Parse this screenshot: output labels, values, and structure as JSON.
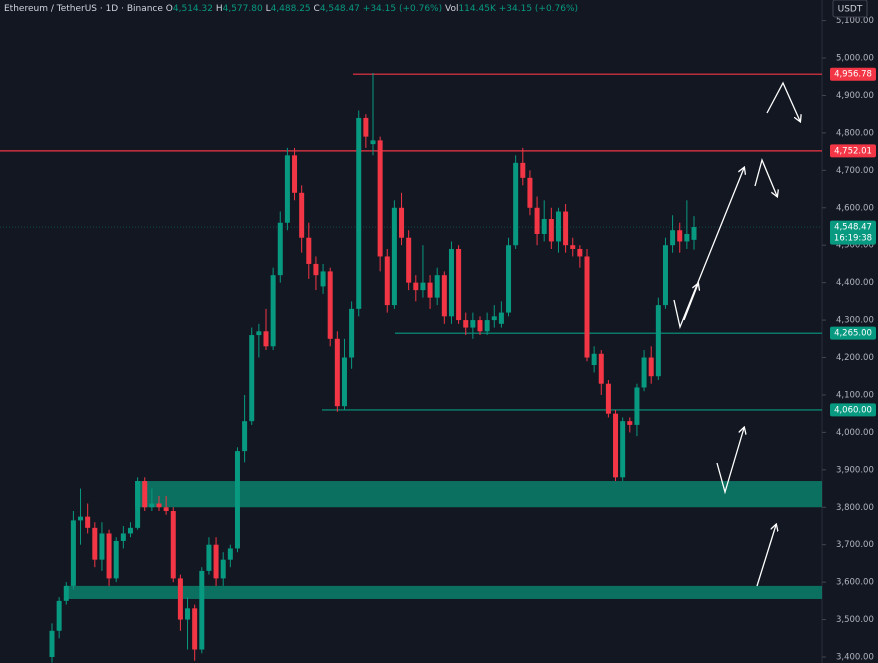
{
  "chart_data": {
    "type": "candlestick",
    "title": "Ethereum / TetherUS · 1D · Binance",
    "header": [
      {
        "label": "O",
        "value": "4,514.32"
      },
      {
        "label": "H",
        "value": "4,577.80"
      },
      {
        "label": "L",
        "value": "4,488.25"
      },
      {
        "label": "C",
        "value": "4,548.47"
      },
      {
        "label": "",
        "value": "+34.15 (+0.76%)"
      },
      {
        "label": "Vol",
        "value": "114.45K"
      },
      {
        "label": "",
        "value": "+34.15 (+0.76%)"
      }
    ],
    "currency": "USDT",
    "countdown": "16:19:38",
    "up_color": "#089981",
    "down_color": "#f23645",
    "open": [
      3400,
      3470,
      3550,
      3590,
      3765,
      3775,
      3745,
      3660,
      3730,
      3610,
      3710,
      3730,
      3745,
      3870,
      3800,
      3810,
      3800,
      3790,
      3610,
      3500,
      3530,
      3420,
      3630,
      3700,
      3610,
      3660,
      3690,
      3950,
      4030,
      4260,
      4270,
      4230,
      4420,
      4560,
      4740,
      4640,
      4520,
      4450,
      4390,
      4430,
      4250,
      4070,
      4200,
      4330,
      4840,
      4770,
      4780,
      4470,
      4340,
      4600,
      4520,
      4400,
      4380,
      4400,
      4360,
      4420,
      4310,
      4490,
      4300,
      4280,
      4300,
      4270,
      4300,
      4290,
      4320,
      4500,
      4720,
      4680,
      4600,
      4530,
      4570,
      4510,
      4590,
      4500,
      4490,
      4470,
      4180,
      4210,
      4130,
      4050,
      3880,
      4030,
      4020,
      4120,
      4200,
      4150,
      4340,
      4500,
      4540,
      4510,
      4514.32
    ],
    "high": [
      3490,
      3560,
      3600,
      3790,
      3850,
      3810,
      3760,
      3760,
      3740,
      3720,
      3750,
      3760,
      3880,
      3880,
      3850,
      3830,
      3830,
      3800,
      3620,
      3560,
      3540,
      3640,
      3720,
      3720,
      3680,
      3700,
      3960,
      4100,
      4280,
      4290,
      4330,
      4440,
      4590,
      4760,
      4760,
      4660,
      4560,
      4470,
      4450,
      4440,
      4270,
      4250,
      4350,
      4860,
      4850,
      4960,
      4790,
      4490,
      4620,
      4640,
      4540,
      4420,
      4500,
      4420,
      4440,
      4430,
      4510,
      4500,
      4320,
      4320,
      4310,
      4320,
      4340,
      4350,
      4520,
      4740,
      4760,
      4700,
      4630,
      4620,
      4600,
      4600,
      4610,
      4520,
      4500,
      4490,
      4230,
      4220,
      4140,
      4060,
      4040,
      4040,
      4130,
      4220,
      4230,
      4360,
      4520,
      4580,
      4560,
      4620,
      4577.8
    ],
    "low": [
      3385,
      3450,
      3540,
      3580,
      3700,
      3730,
      3640,
      3630,
      3590,
      3600,
      3690,
      3720,
      3740,
      3790,
      3790,
      3790,
      3780,
      3600,
      3470,
      3420,
      3390,
      3410,
      3620,
      3590,
      3590,
      3640,
      3680,
      3920,
      4020,
      4200,
      4220,
      4220,
      4400,
      4540,
      4620,
      4480,
      4410,
      4380,
      4370,
      4230,
      4055,
      4060,
      4170,
      4310,
      4760,
      4740,
      4430,
      4320,
      4330,
      4500,
      4380,
      4350,
      4360,
      4330,
      4340,
      4290,
      4290,
      4290,
      4260,
      4250,
      4260,
      4260,
      4280,
      4280,
      4310,
      4490,
      4660,
      4580,
      4500,
      4510,
      4490,
      4480,
      4480,
      4470,
      4440,
      4190,
      4160,
      4100,
      4040,
      3870,
      3870,
      4000,
      3990,
      4110,
      4130,
      4140,
      4330,
      4480,
      4480,
      4490,
      4488.25
    ],
    "close": [
      3470,
      3550,
      3590,
      3765,
      3775,
      3745,
      3660,
      3730,
      3610,
      3710,
      3730,
      3745,
      3870,
      3800,
      3810,
      3800,
      3790,
      3610,
      3500,
      3530,
      3420,
      3630,
      3700,
      3610,
      3660,
      3690,
      3950,
      4030,
      4260,
      4270,
      4230,
      4420,
      4560,
      4740,
      4640,
      4520,
      4450,
      4420,
      4430,
      4250,
      4070,
      4200,
      4330,
      4840,
      4790,
      4780,
      4470,
      4340,
      4600,
      4520,
      4400,
      4380,
      4400,
      4360,
      4420,
      4310,
      4490,
      4300,
      4280,
      4300,
      4270,
      4300,
      4310,
      4320,
      4500,
      4720,
      4680,
      4600,
      4530,
      4570,
      4510,
      4590,
      4500,
      4490,
      4470,
      4200,
      4210,
      4130,
      4050,
      3880,
      4030,
      4020,
      4120,
      4200,
      4150,
      4340,
      4500,
      4540,
      4510,
      4530,
      4548.47
    ],
    "ylim": [
      3384,
      5155
    ],
    "yticks": [
      {
        "value": 3400,
        "label": "3,400.00"
      },
      {
        "value": 3500,
        "label": "3,500.00"
      },
      {
        "value": 3600,
        "label": "3,600.00"
      },
      {
        "value": 3700,
        "label": "3,700.00"
      },
      {
        "value": 3800,
        "label": "3,800.00"
      },
      {
        "value": 3900,
        "label": "3,900.00"
      },
      {
        "value": 4000,
        "label": "4,000.00"
      },
      {
        "value": 4100,
        "label": "4,100.00"
      },
      {
        "value": 4200,
        "label": "4,200.00"
      },
      {
        "value": 4300,
        "label": "4,300.00"
      },
      {
        "value": 4400,
        "label": "4,400.00"
      },
      {
        "value": 4500,
        "label": "4,500.00"
      },
      {
        "value": 4600,
        "label": "4,600.00"
      },
      {
        "value": 4700,
        "label": "4,700.00"
      },
      {
        "value": 4800,
        "label": "4,800.00"
      },
      {
        "value": 4900,
        "label": "4,900.00"
      },
      {
        "value": 5000,
        "label": "5,000.00"
      },
      {
        "value": 5100,
        "label": "5,100.00"
      }
    ],
    "price_levels": [
      {
        "value": 4956.78,
        "label": "4,956.78",
        "color": "#f23645"
      },
      {
        "value": 4752.01,
        "label": "4,752.01",
        "color": "#f23645"
      },
      {
        "value": 4548.47,
        "label": "4,548.47",
        "color": "#089981"
      },
      {
        "value": 4265,
        "label": "4,265.00",
        "color": "#089981"
      },
      {
        "value": 4060,
        "label": "4,060.00",
        "color": "#089981"
      }
    ],
    "zones": [
      {
        "low": 3800,
        "high": 3870,
        "color": "#0c7a68"
      },
      {
        "low": 3555,
        "high": 3590,
        "color": "#0c7a68"
      }
    ]
  }
}
